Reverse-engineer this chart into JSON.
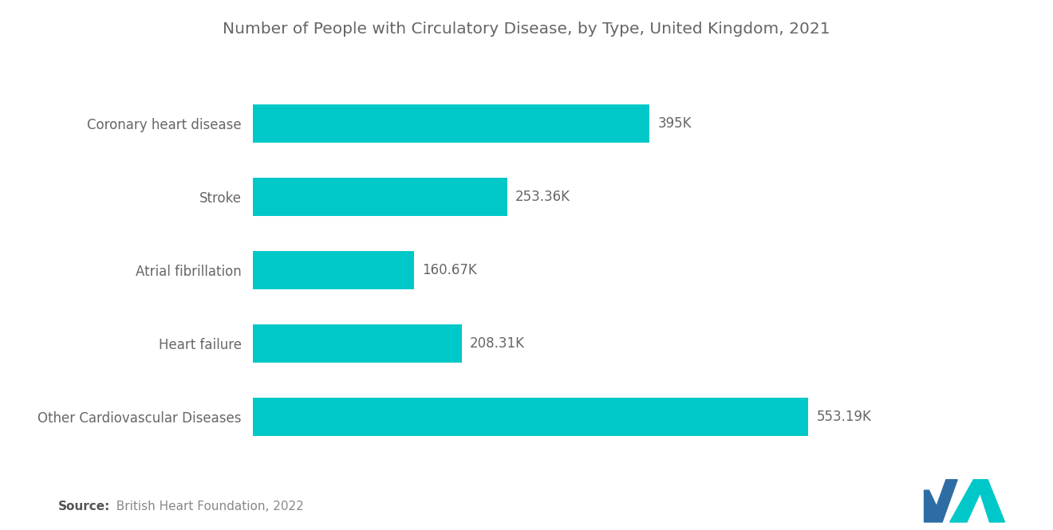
{
  "title": "Number of People with Circulatory Disease, by Type, United Kingdom, 2021",
  "categories": [
    "Other Cardiovascular Diseases",
    "Heart failure",
    "Atrial fibrillation",
    "Stroke",
    "Coronary heart disease"
  ],
  "values": [
    553.19,
    208.31,
    160.67,
    253.36,
    395
  ],
  "labels": [
    "553.19K",
    "208.31K",
    "160.67K",
    "253.36K",
    "395K"
  ],
  "bar_color": "#00C8C8",
  "background_color": "#ffffff",
  "title_color": "#666666",
  "label_color": "#666666",
  "category_color": "#666666",
  "source_bold": "Source:",
  "source_rest": "  British Heart Foundation, 2022",
  "title_fontsize": 14.5,
  "label_fontsize": 12,
  "category_fontsize": 12,
  "source_fontsize": 11,
  "xlim_max": 650,
  "bar_height": 0.52,
  "logo_blue": "#2E6DA4",
  "logo_teal": "#00C8C8"
}
